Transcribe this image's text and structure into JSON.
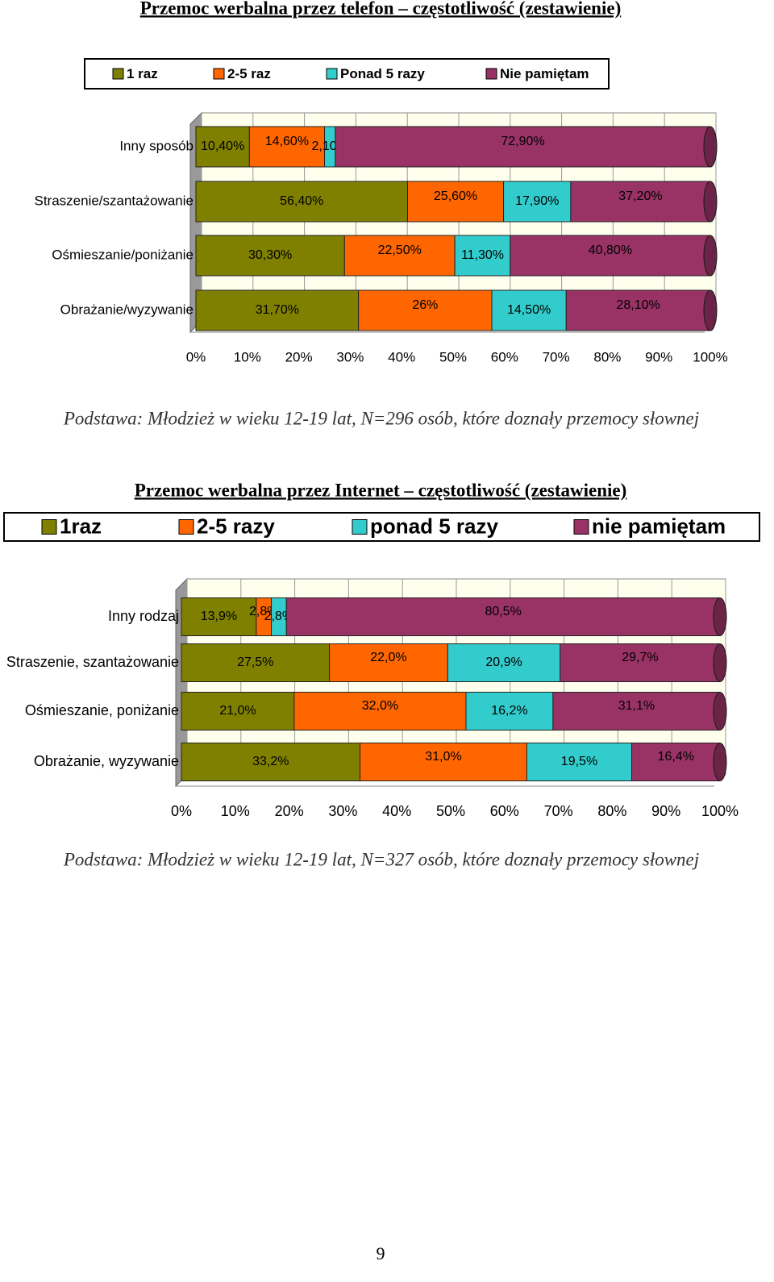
{
  "chart_data": [
    {
      "type": "bar",
      "orientation": "horizontal",
      "stacked": "percent",
      "title": "Przemoc werbalna przez telefon – częstotliwość (zestawienie)",
      "categories": [
        "Inny sposób",
        "Straszenie/szantażowanie",
        "Ośmieszanie/poniżanie",
        "Obrażanie/wyzywanie"
      ],
      "series": [
        {
          "name": "1 raz",
          "color": "#808000",
          "values": [
            10.4,
            56.4,
            30.3,
            31.7
          ],
          "value_labels": [
            "10,40%",
            "56,40%",
            "30,30%",
            "31,70%"
          ]
        },
        {
          "name": "2-5 raz",
          "color": "#ff6600",
          "values": [
            14.6,
            25.6,
            22.5,
            26
          ],
          "value_labels": [
            "14,60%",
            "25,60%",
            "22,50%",
            "26%"
          ]
        },
        {
          "name": "Ponad 5 razy",
          "color": "#33cccc",
          "values": [
            2.1,
            17.9,
            11.3,
            14.5
          ],
          "value_labels": [
            "2,10%",
            "17,90%",
            "11,30%",
            "14,50%"
          ]
        },
        {
          "name": "Nie pamiętam",
          "color": "#993366",
          "values": [
            72.9,
            37.2,
            40.8,
            28.1
          ],
          "value_labels": [
            "72,90%",
            "37,20%",
            "40,80%",
            "28,10%"
          ]
        }
      ],
      "xlim": [
        0,
        100
      ],
      "xticks": [
        {
          "value": 0,
          "label": "0%"
        },
        {
          "value": 10,
          "label": "10%"
        },
        {
          "value": 20,
          "label": "20%"
        },
        {
          "value": 30,
          "label": "30%"
        },
        {
          "value": 40,
          "label": "40%"
        },
        {
          "value": 50,
          "label": "50%"
        },
        {
          "value": 60,
          "label": "60%"
        },
        {
          "value": 70,
          "label": "70%"
        },
        {
          "value": 80,
          "label": "80%"
        },
        {
          "value": 90,
          "label": "90%"
        },
        {
          "value": 100,
          "label": "100%"
        }
      ],
      "grid": true,
      "legend": "top",
      "note": "Podstawa: Młodzież w wieku 12-19 lat, N=296 osób, które doznały przemocy słownej"
    },
    {
      "type": "bar",
      "orientation": "horizontal",
      "stacked": "percent",
      "title": "Przemoc werbalna przez Internet – częstotliwość (zestawienie)",
      "categories": [
        "Inny rodzaj",
        "Straszenie, szantażowanie",
        "Ośmieszanie, poniżanie",
        "Obrażanie, wyzywanie"
      ],
      "series": [
        {
          "name": "1raz",
          "color": "#808000",
          "values": [
            13.9,
            27.5,
            21.0,
            33.2
          ],
          "value_labels": [
            "13,9%",
            "27,5%",
            "21,0%",
            "33,2%"
          ]
        },
        {
          "name": "2-5 razy",
          "color": "#ff6600",
          "values": [
            2.8,
            22.0,
            32.0,
            31.0
          ],
          "value_labels": [
            "2,8%",
            "22,0%",
            "32,0%",
            "31,0%"
          ]
        },
        {
          "name": "ponad 5 razy",
          "color": "#33cccc",
          "values": [
            2.8,
            20.9,
            16.2,
            19.5
          ],
          "value_labels": [
            "2,8%",
            "20,9%",
            "16,2%",
            "19,5%"
          ]
        },
        {
          "name": "nie pamiętam",
          "color": "#993366",
          "values": [
            80.5,
            29.7,
            31.1,
            16.4
          ],
          "value_labels": [
            "80,5%",
            "29,7%",
            "31,1%",
            "16,4%"
          ]
        }
      ],
      "xlim": [
        0,
        100
      ],
      "xticks": [
        {
          "value": 0,
          "label": "0%"
        },
        {
          "value": 10,
          "label": "10%"
        },
        {
          "value": 20,
          "label": "20%"
        },
        {
          "value": 30,
          "label": "30%"
        },
        {
          "value": 40,
          "label": "40%"
        },
        {
          "value": 50,
          "label": "50%"
        },
        {
          "value": 60,
          "label": "60%"
        },
        {
          "value": 70,
          "label": "70%"
        },
        {
          "value": 80,
          "label": "80%"
        },
        {
          "value": 90,
          "label": "90%"
        },
        {
          "value": 100,
          "label": "100%"
        }
      ],
      "grid": true,
      "legend": "top",
      "note": "Podstawa: Młodzież w wieku 12-19 lat, N=327 osób, które doznały przemocy słownej"
    }
  ],
  "page_number": "9"
}
